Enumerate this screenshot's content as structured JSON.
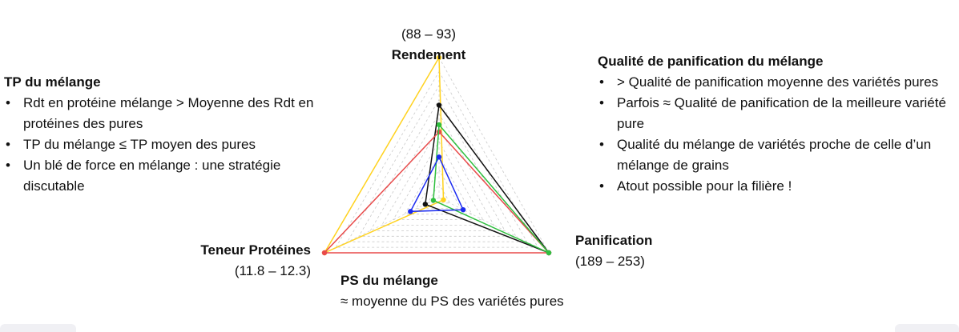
{
  "axes": {
    "top": {
      "range": "(88 – 93)",
      "label": "Rendement"
    },
    "left": {
      "label": "Teneur Protéines",
      "range": "(11.8 – 12.3)"
    },
    "right": {
      "label": "Panification",
      "range": "(189 – 253)"
    }
  },
  "tp_block": {
    "title": "TP du mélange",
    "bullets": [
      "Rdt en protéine mélange > Moyenne des Rdt en protéines des pures",
      "TP du mélange ≤ TP moyen des pures",
      "Un blé de force en mélange : une stratégie discutable"
    ]
  },
  "quality_block": {
    "title": "Qualité de panification du mélange",
    "bullets": [
      "> Qualité de panification moyenne des variétés pures",
      "Parfois ≈ Qualité de panification de la meilleure variété pure",
      "Qualité du mélange de variétés proche de celle d’un mélange de grains",
      "Atout possible pour la filière !"
    ]
  },
  "ps_block": {
    "title": "PS du mélange",
    "text": "≈ moyenne du PS des variétés pures"
  },
  "bullet_char": "•",
  "chart_data": {
    "type": "radar",
    "axes": [
      "Rendement",
      "Panification",
      "Teneur Protéines"
    ],
    "ranges": [
      [
        88,
        93
      ],
      [
        189,
        253
      ],
      [
        11.8,
        12.3
      ]
    ],
    "grid": true,
    "series": [
      {
        "color": "#ffd21f",
        "values": [
          1.0,
          0.04,
          1.0
        ]
      },
      {
        "color": "#111111",
        "values": [
          0.66,
          1.0,
          0.12
        ]
      },
      {
        "color": "#e84a4a",
        "values": [
          0.47,
          1.0,
          1.0
        ]
      },
      {
        "color": "#2fbf3f",
        "values": [
          0.52,
          1.0,
          0.05
        ]
      },
      {
        "color": "#1b2bf0",
        "values": [
          0.29,
          0.22,
          0.25
        ]
      }
    ]
  }
}
